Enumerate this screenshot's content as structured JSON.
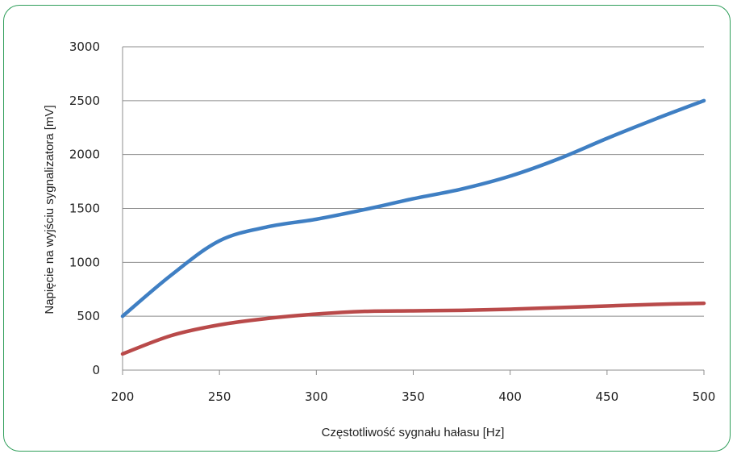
{
  "chart_data": {
    "type": "line",
    "title": "",
    "xlabel": "Częstotliwość sygnału hałasu [Hz]",
    "ylabel": "Napięcie na wyjściu sygnalizatora [mV]",
    "xlim": [
      200,
      500
    ],
    "ylim": [
      0,
      3000
    ],
    "xticks": [
      "200",
      "250",
      "300",
      "350",
      "400",
      "450",
      "500"
    ],
    "yticks": [
      "0",
      "500",
      "1000",
      "1500",
      "2000",
      "2500",
      "3000"
    ],
    "grid": "horizontal",
    "legend": "none",
    "x": [
      200,
      225,
      250,
      275,
      300,
      325,
      350,
      375,
      400,
      425,
      450,
      475,
      500
    ],
    "series": [
      {
        "color": "#3f7fc3",
        "values": [
          500,
          880,
          1200,
          1330,
          1400,
          1490,
          1590,
          1680,
          1800,
          1960,
          2150,
          2330,
          2500
        ]
      },
      {
        "color": "#b94a4a",
        "values": [
          150,
          320,
          420,
          480,
          520,
          545,
          550,
          555,
          565,
          580,
          595,
          610,
          620
        ]
      }
    ]
  },
  "colors": {
    "frame": "#2f9e5a",
    "grid": "#8c8c8c"
  }
}
